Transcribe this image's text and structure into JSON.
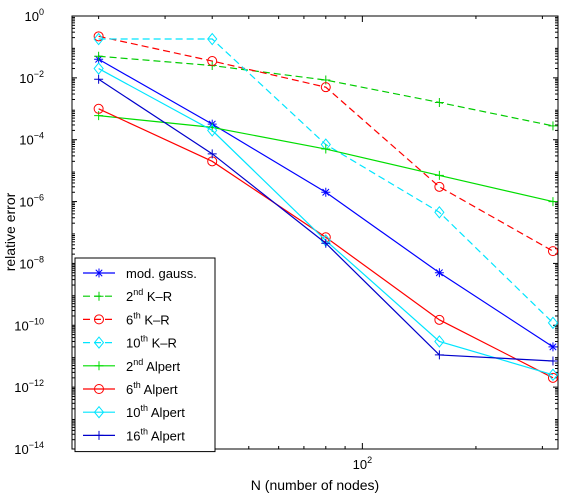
{
  "chart_data": {
    "type": "line",
    "xlabel": "N (number of nodes)",
    "ylabel": "relative error",
    "x_scale": "log",
    "y_scale": "log",
    "xlim": [
      17,
      330
    ],
    "ylim": [
      1e-14,
      1
    ],
    "x_ticks": [
      {
        "value": 100,
        "base": "10",
        "exp": "2"
      }
    ],
    "y_ticks": [
      {
        "value": 1e-14,
        "base": "10",
        "exp": "−14"
      },
      {
        "value": 1e-12,
        "base": "10",
        "exp": "−12"
      },
      {
        "value": 1e-10,
        "base": "10",
        "exp": "−10"
      },
      {
        "value": 1e-08,
        "base": "10",
        "exp": "−8"
      },
      {
        "value": 1e-06,
        "base": "10",
        "exp": "−6"
      },
      {
        "value": 0.0001,
        "base": "10",
        "exp": "−4"
      },
      {
        "value": 0.01,
        "base": "10",
        "exp": "−2"
      },
      {
        "value": 1,
        "base": "10",
        "exp": "0"
      }
    ],
    "grid": false,
    "legend_position": "bottom-left",
    "x": [
      20,
      40,
      80,
      160,
      320
    ],
    "series": [
      {
        "name": "mod. gauss.",
        "label_parts": [
          "mod. gauss.",
          "",
          ""
        ],
        "color": "#0000ff",
        "dash": "solid",
        "marker": "asterisk",
        "values": [
          0.04,
          0.00032,
          2e-06,
          5e-09,
          2e-11
        ]
      },
      {
        "name": "2nd K-R",
        "label_parts": [
          "2",
          "nd",
          " K–R"
        ],
        "color": "#00cc00",
        "dash": "dashed",
        "marker": "plus",
        "values": [
          0.05,
          0.025,
          0.0085,
          0.0016,
          0.00028
        ]
      },
      {
        "name": "6th K-R",
        "label_parts": [
          "6",
          "th",
          " K–R"
        ],
        "color": "#ff0000",
        "dash": "dashed",
        "marker": "circle",
        "values": [
          0.22,
          0.035,
          0.005,
          3e-06,
          2.5e-08
        ]
      },
      {
        "name": "10th K-R",
        "label_parts": [
          "10",
          "th",
          " K–R"
        ],
        "color": "#00e5ff",
        "dash": "dashed",
        "marker": "diamond",
        "values": [
          0.18,
          0.18,
          7e-05,
          4.5e-07,
          1.2e-10
        ]
      },
      {
        "name": "2nd Alpert",
        "label_parts": [
          "2",
          "nd",
          " Alpert"
        ],
        "color": "#00dd00",
        "dash": "solid",
        "marker": "plus",
        "values": [
          0.0006,
          0.00025,
          5e-05,
          7e-06,
          1e-06
        ]
      },
      {
        "name": "6th Alpert",
        "label_parts": [
          "6",
          "th",
          " Alpert"
        ],
        "color": "#ff0000",
        "dash": "solid",
        "marker": "circle",
        "values": [
          0.001,
          2e-05,
          7e-08,
          1.5e-10,
          2e-12
        ]
      },
      {
        "name": "10th Alpert",
        "label_parts": [
          "10",
          "th",
          " Alpert"
        ],
        "color": "#00e5ff",
        "dash": "solid",
        "marker": "diamond",
        "values": [
          0.02,
          0.0002,
          5.5e-08,
          3e-11,
          2.5e-12
        ]
      },
      {
        "name": "16th Alpert",
        "label_parts": [
          "16",
          "th",
          " Alpert"
        ],
        "color": "#0000cc",
        "dash": "solid",
        "marker": "plus",
        "values": [
          0.009,
          3.5e-05,
          4.5e-08,
          1.1e-11,
          7e-12
        ]
      }
    ]
  }
}
